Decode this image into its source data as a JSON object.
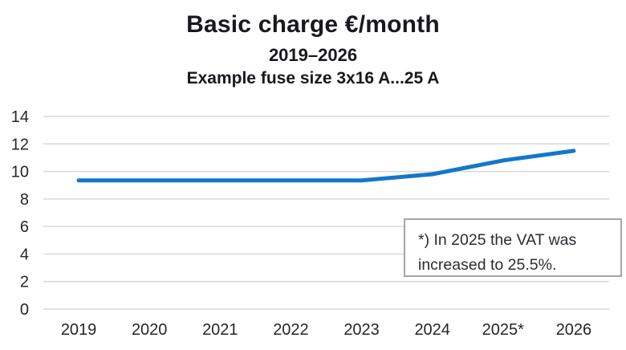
{
  "header": {
    "title": "Basic charge €/month",
    "subtitle": "2019–2026",
    "subtitle2": "Example fuse size 3x16 A...25 A"
  },
  "annotation": {
    "lines": [
      "*) In 2025 the VAT was",
      "increased to 25.5%."
    ],
    "full_text": "*) In 2025 the VAT was increased to 25.5%.",
    "border_color": "#A6A6A6",
    "background": "#FFFFFF"
  },
  "chart_data": {
    "type": "line",
    "title": "Basic charge €/month",
    "subtitle": "2019–2026",
    "subtitle2": "Example fuse size 3x16 A...25 A",
    "categories": [
      "2019",
      "2020",
      "2021",
      "2022",
      "2023",
      "2024",
      "2025*",
      "2026"
    ],
    "series": [
      {
        "name": "Basic charge €/month",
        "values": [
          9.35,
          9.35,
          9.35,
          9.35,
          9.35,
          9.8,
          10.8,
          11.5
        ]
      }
    ],
    "xlabel": "",
    "ylabel": "",
    "ylim": [
      0,
      14
    ],
    "yticks": [
      0,
      2,
      4,
      6,
      8,
      10,
      12,
      14
    ],
    "grid": true,
    "legend": "none",
    "annotation": "*) In 2025 the VAT was increased to 25.5%.",
    "colors": {
      "line": "#1278C8",
      "grid": "#D9D9D9",
      "axis_text": "#262626",
      "title_text": "#18181E",
      "background": "#FFFFFF"
    },
    "style": {
      "line_width": 5,
      "tick_font_size": 20
    }
  }
}
